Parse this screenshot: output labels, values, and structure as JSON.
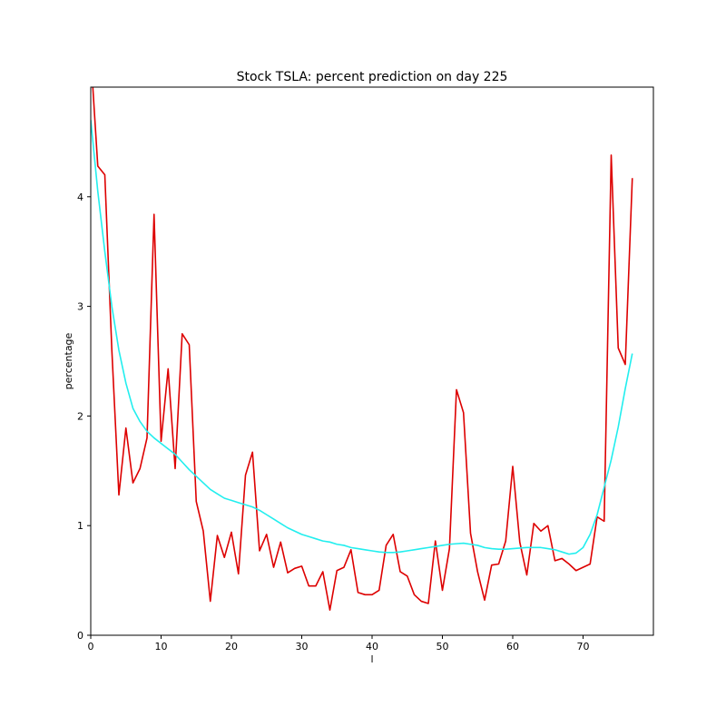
{
  "chart_data": {
    "type": "line",
    "title": "Stock TSLA: percent prediction on day 225",
    "xlabel": "l",
    "ylabel": "percentage",
    "xlim": [
      0,
      80
    ],
    "ylim": [
      0,
      5
    ],
    "xticks": [
      0,
      10,
      20,
      30,
      40,
      50,
      60,
      70
    ],
    "yticks": [
      0,
      1,
      2,
      3,
      4
    ],
    "grid": false,
    "series": [
      {
        "color": "#dd0000",
        "x": [
          0,
          1,
          2,
          3,
          4,
          5,
          6,
          7,
          8,
          9,
          10,
          11,
          12,
          13,
          14,
          15,
          16,
          17,
          18,
          19,
          20,
          21,
          22,
          23,
          24,
          25,
          26,
          27,
          28,
          29,
          30,
          31,
          32,
          33,
          34,
          35,
          36,
          37,
          38,
          39,
          40,
          41,
          42,
          43,
          44,
          45,
          46,
          47,
          48,
          49,
          50,
          51,
          52,
          53,
          54,
          55,
          56,
          57,
          58,
          59,
          60,
          61,
          62,
          63,
          64,
          65,
          66,
          67,
          68,
          69,
          70,
          71,
          72,
          73,
          74,
          75,
          76,
          77
        ],
        "values": [
          5.3,
          4.28,
          4.2,
          2.6,
          1.28,
          1.89,
          1.39,
          1.52,
          1.8,
          3.84,
          1.77,
          2.43,
          1.52,
          2.75,
          2.65,
          1.22,
          0.95,
          0.31,
          0.91,
          0.71,
          0.94,
          0.56,
          1.46,
          1.67,
          0.77,
          0.92,
          0.62,
          0.85,
          0.57,
          0.61,
          0.63,
          0.45,
          0.45,
          0.58,
          0.23,
          0.59,
          0.62,
          0.78,
          0.39,
          0.37,
          0.37,
          0.41,
          0.82,
          0.92,
          0.58,
          0.54,
          0.37,
          0.31,
          0.29,
          0.86,
          0.41,
          0.79,
          2.24,
          2.03,
          0.93,
          0.58,
          0.32,
          0.64,
          0.65,
          0.86,
          1.54,
          0.85,
          0.55,
          1.02,
          0.95,
          1.0,
          0.68,
          0.7,
          0.65,
          0.59,
          0.62,
          0.65,
          1.08,
          1.04,
          4.38,
          2.62,
          2.47,
          4.17
        ]
      },
      {
        "color": "#22eeee",
        "x": [
          0,
          1,
          2,
          3,
          4,
          5,
          6,
          7,
          8,
          9,
          10,
          11,
          12,
          13,
          14,
          15,
          16,
          17,
          18,
          19,
          20,
          21,
          22,
          23,
          24,
          25,
          26,
          27,
          28,
          29,
          30,
          31,
          32,
          33,
          34,
          35,
          36,
          37,
          38,
          39,
          40,
          41,
          42,
          43,
          44,
          45,
          46,
          47,
          48,
          49,
          50,
          51,
          52,
          53,
          54,
          55,
          56,
          57,
          58,
          59,
          60,
          61,
          62,
          63,
          64,
          65,
          66,
          67,
          68,
          69,
          70,
          71,
          72,
          73,
          74,
          75,
          76,
          77
        ],
        "values": [
          4.7,
          4.05,
          3.5,
          3.0,
          2.6,
          2.3,
          2.07,
          1.95,
          1.86,
          1.8,
          1.75,
          1.7,
          1.65,
          1.58,
          1.51,
          1.45,
          1.39,
          1.33,
          1.29,
          1.25,
          1.23,
          1.21,
          1.19,
          1.17,
          1.14,
          1.1,
          1.06,
          1.02,
          0.98,
          0.95,
          0.92,
          0.9,
          0.88,
          0.86,
          0.85,
          0.83,
          0.82,
          0.8,
          0.79,
          0.78,
          0.77,
          0.76,
          0.755,
          0.755,
          0.76,
          0.77,
          0.78,
          0.79,
          0.8,
          0.81,
          0.82,
          0.83,
          0.835,
          0.84,
          0.83,
          0.82,
          0.8,
          0.79,
          0.785,
          0.785,
          0.79,
          0.795,
          0.8,
          0.8,
          0.8,
          0.79,
          0.78,
          0.76,
          0.74,
          0.75,
          0.8,
          0.92,
          1.1,
          1.35,
          1.6,
          1.9,
          2.25,
          2.57
        ]
      }
    ]
  }
}
